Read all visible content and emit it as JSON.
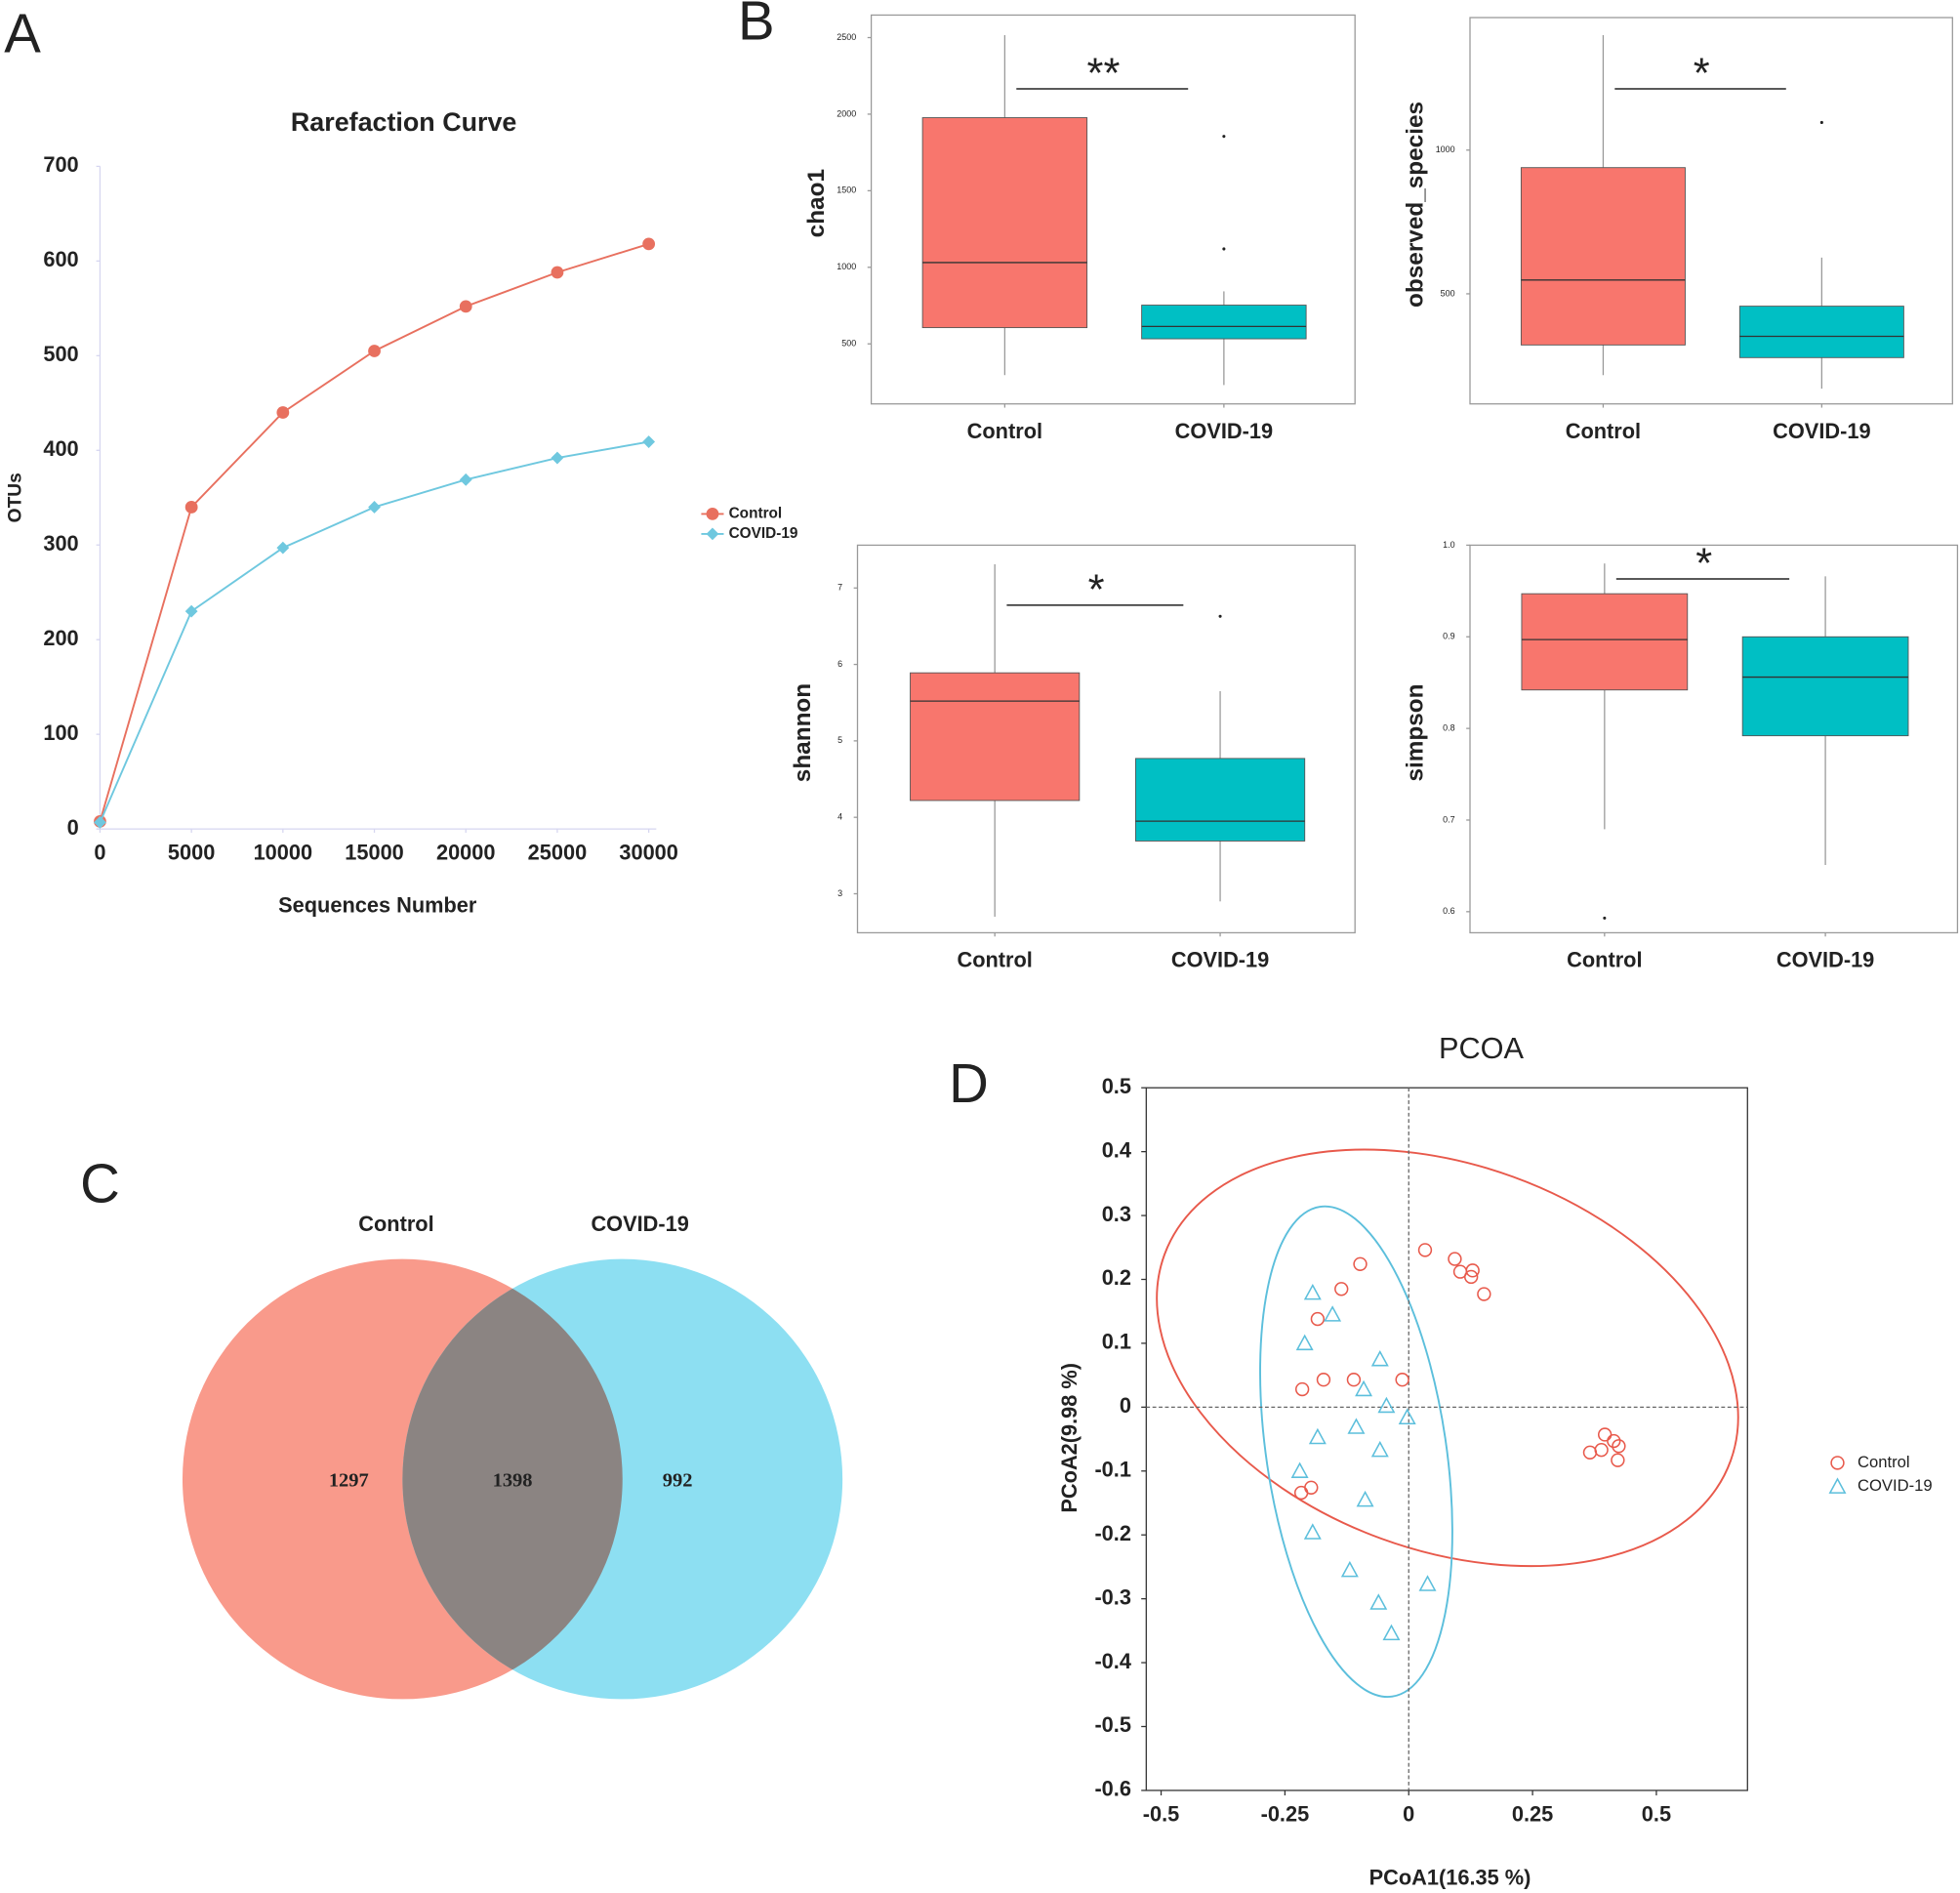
{
  "chart_data": [
    {
      "type": "line",
      "panel": "A",
      "title": "Rarefaction Curve",
      "x_label": "Sequences Number",
      "y_label": "OTUs",
      "x": [
        0,
        5000,
        10000,
        15000,
        20000,
        25000,
        30000
      ],
      "xlim": [
        0,
        30000
      ],
      "xticks": [
        0,
        5000,
        10000,
        15000,
        20000,
        25000,
        30000
      ],
      "ylim": [
        0,
        700
      ],
      "yticks": [
        0,
        100,
        200,
        300,
        400,
        500,
        600,
        700
      ],
      "series": [
        {
          "name": "Control",
          "color": "#e8705f",
          "marker": "circle",
          "values": [
            8,
            340,
            440,
            505,
            552,
            588,
            618
          ]
        },
        {
          "name": "COVID-19",
          "color": "#6fc8df",
          "marker": "diamond",
          "values": [
            7,
            230,
            297,
            340,
            369,
            392,
            409
          ]
        }
      ]
    },
    {
      "type": "box",
      "panel": "B",
      "y_label": "chao1",
      "categories": [
        "Control",
        "COVID-19"
      ],
      "ylim": [
        108,
        2647
      ],
      "yticks": [
        500,
        1000,
        1500,
        2000,
        2500
      ],
      "significance": "**",
      "boxes": [
        {
          "color": "#f8766d",
          "min": 296,
          "q1": 606,
          "median": 1031,
          "q3": 1977,
          "max": 2516,
          "outliers": []
        },
        {
          "color": "#00bfc4",
          "min": 231,
          "q1": 533,
          "median": 614,
          "q3": 753,
          "max": 843,
          "outliers": [
            1120,
            1855
          ]
        }
      ]
    },
    {
      "type": "box",
      "y_label": "observed_species",
      "categories": [
        "Control",
        "COVID-19"
      ],
      "ylim": [
        117,
        1461
      ],
      "yticks": [
        500,
        1000
      ],
      "significance": "*",
      "boxes": [
        {
          "color": "#f8766d",
          "min": 217,
          "q1": 322,
          "median": 548,
          "q3": 939,
          "max": 1400,
          "outliers": []
        },
        {
          "color": "#00bfc4",
          "min": 170,
          "q1": 278,
          "median": 352,
          "q3": 457,
          "max": 626,
          "outliers": [
            1096
          ]
        }
      ]
    },
    {
      "type": "box",
      "y_label": "shannon",
      "categories": [
        "Control",
        "COVID-19"
      ],
      "ylim": [
        2.49,
        7.56
      ],
      "yticks": [
        3,
        4,
        5,
        6,
        7
      ],
      "significance": "*",
      "boxes": [
        {
          "color": "#f8766d",
          "min": 2.7,
          "q1": 4.22,
          "median": 5.52,
          "q3": 5.89,
          "max": 7.31,
          "outliers": []
        },
        {
          "color": "#00bfc4",
          "min": 2.9,
          "q1": 3.69,
          "median": 3.95,
          "q3": 4.77,
          "max": 5.65,
          "outliers": [
            6.63
          ]
        }
      ]
    },
    {
      "type": "box",
      "y_label": "simpson",
      "categories": [
        "Control",
        "COVID-19"
      ],
      "ylim": [
        0.577,
        1.0
      ],
      "yticks": [
        0.6,
        0.7,
        0.8,
        0.9,
        {
          "value": 1,
          "label": "1.0"
        }
      ],
      "significance": "*",
      "boxes": [
        {
          "color": "#f8766d",
          "min": 0.69,
          "q1": 0.842,
          "median": 0.897,
          "q3": 0.947,
          "max": 0.98,
          "outliers": [
            0.593
          ]
        },
        {
          "color": "#00bfc4",
          "min": 0.651,
          "q1": 0.792,
          "median": 0.856,
          "q3": 0.9,
          "max": 0.966,
          "outliers": []
        }
      ]
    },
    {
      "type": "venn",
      "panel": "C",
      "sets": [
        {
          "name": "Control",
          "color": "#f99a8b"
        },
        {
          "name": "COVID-19",
          "color": "#8ddff2"
        }
      ],
      "overlap_color": "#8b8482",
      "values": [
        1297,
        1398,
        992
      ]
    },
    {
      "type": "scatter",
      "panel": "D",
      "title": "PCOA",
      "x_label": "PCoA1(16.35 %)",
      "y_label": "PCoA2(9.98 %)",
      "xlim": [
        -0.53,
        0.684
      ],
      "xticks": [
        -0.5,
        -0.25,
        0,
        0.25,
        0.5
      ],
      "ylim": [
        -0.6,
        0.5
      ],
      "yticks": [
        -0.6,
        -0.5,
        -0.4,
        -0.3,
        -0.2,
        -0.1,
        0,
        0.1,
        0.2,
        0.3,
        0.4,
        0.5
      ],
      "series": [
        {
          "name": "Control",
          "color": "#e8594b",
          "marker": "circle",
          "x": [
            0.033,
            0.093,
            0.104,
            0.129,
            0.126,
            0.152,
            -0.098,
            -0.136,
            -0.184,
            -0.172,
            -0.215,
            -0.111,
            -0.013,
            -0.197,
            -0.217,
            0.396,
            0.414,
            0.424,
            0.389,
            0.366,
            0.422
          ],
          "values": [
            0.246,
            0.232,
            0.212,
            0.214,
            0.204,
            0.177,
            0.224,
            0.185,
            0.138,
            0.043,
            0.028,
            0.043,
            0.043,
            -0.126,
            -0.134,
            -0.043,
            -0.053,
            -0.061,
            -0.067,
            -0.071,
            -0.083
          ]
        },
        {
          "name": "COVID-19",
          "color": "#5cbfdc",
          "marker": "triangle",
          "x": [
            -0.194,
            -0.154,
            -0.21,
            -0.058,
            -0.091,
            -0.045,
            -0.106,
            -0.003,
            -0.184,
            -0.058,
            -0.22,
            -0.088,
            -0.194,
            -0.119,
            0.038,
            -0.061,
            -0.035
          ],
          "values": [
            0.179,
            0.145,
            0.1,
            0.075,
            0.028,
            0.002,
            -0.031,
            -0.016,
            -0.047,
            -0.067,
            -0.1,
            -0.145,
            -0.196,
            -0.255,
            -0.277,
            -0.306,
            -0.354
          ]
        }
      ]
    }
  ]
}
